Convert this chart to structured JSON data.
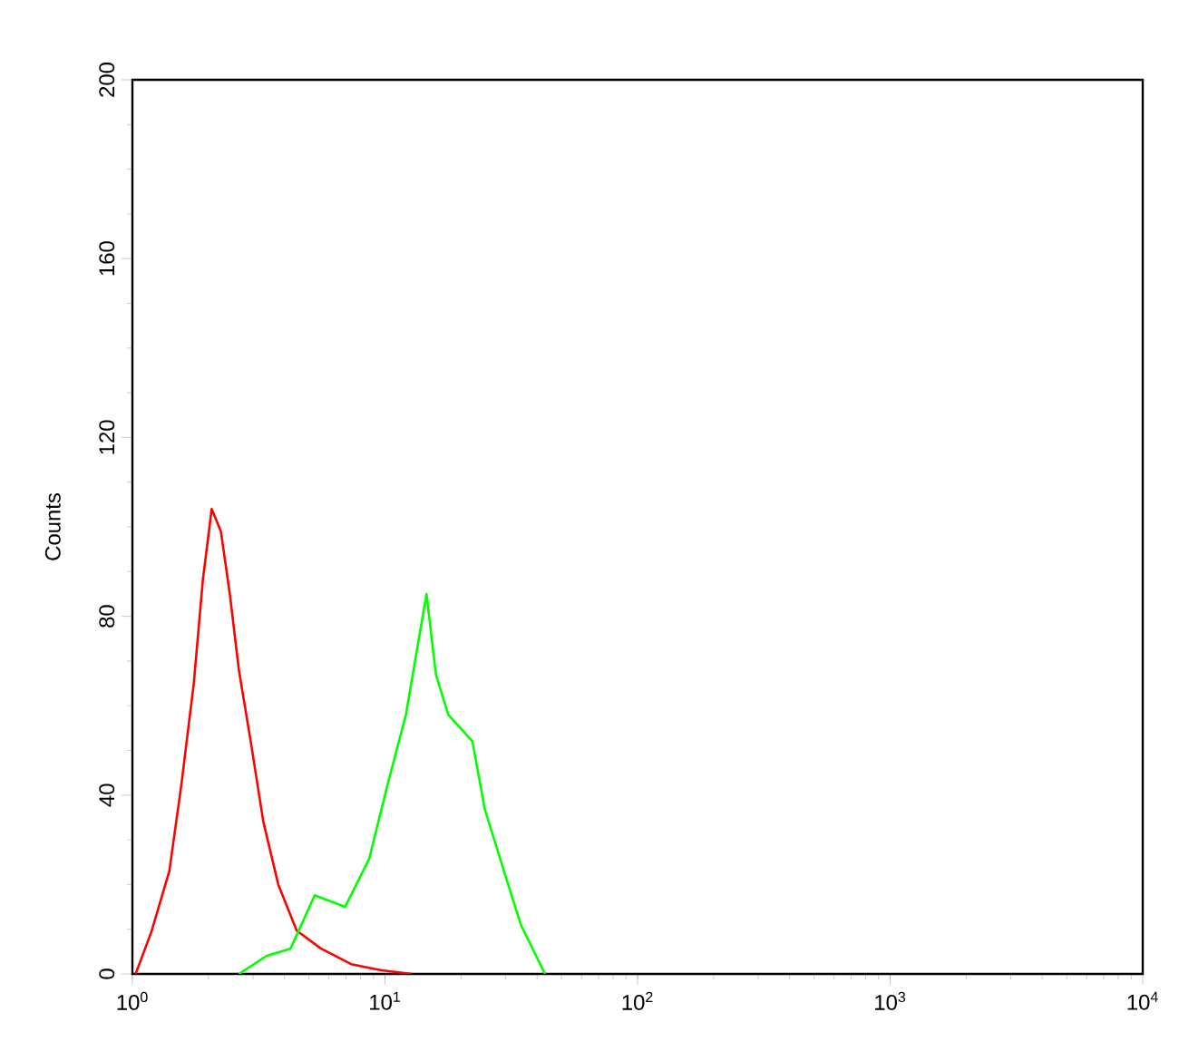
{
  "chart_data": {
    "type": "line",
    "ylabel": "Counts",
    "log": "x",
    "grid": false,
    "marker": "none",
    "xlim": [
      1,
      10000
    ],
    "ylim": [
      0,
      200
    ],
    "xticks": [
      {
        "value": 1,
        "label": "10$^{0}$"
      },
      {
        "value": 10,
        "label": "10$^{1}$"
      },
      {
        "value": 100,
        "label": "10$^{2}$"
      },
      {
        "value": 1000,
        "label": "10$^{3}$"
      },
      {
        "value": 10000,
        "label": "10$^{4}$"
      }
    ],
    "yticks": [
      0,
      40,
      80,
      120,
      160,
      200
    ],
    "series": [
      {
        "color": "#ff0000",
        "x": [
          1.03,
          1.19,
          1.4,
          1.56,
          1.75,
          1.9,
          2.06,
          2.24,
          2.43,
          2.64,
          2.95,
          3.3,
          3.78,
          4.47,
          5.57,
          7.34,
          9.7,
          12.8
        ],
        "values": [
          0,
          9.5,
          23,
          42,
          65,
          88,
          104,
          99,
          85,
          68,
          51.5,
          34,
          20,
          9.7,
          5.7,
          2.2,
          0.8,
          0
        ]
      },
      {
        "color": "#00ff00",
        "x": [
          2.64,
          3.39,
          4.23,
          5.27,
          6.95,
          8.66,
          10.2,
          12.1,
          14.6,
          15.9,
          17.8,
          22.2,
          24.8,
          29.2,
          34.5,
          43
        ],
        "values": [
          0,
          4,
          5.7,
          17.6,
          15,
          25.8,
          42,
          58,
          85,
          67,
          58,
          52,
          37,
          24,
          11,
          0
        ]
      }
    ]
  }
}
